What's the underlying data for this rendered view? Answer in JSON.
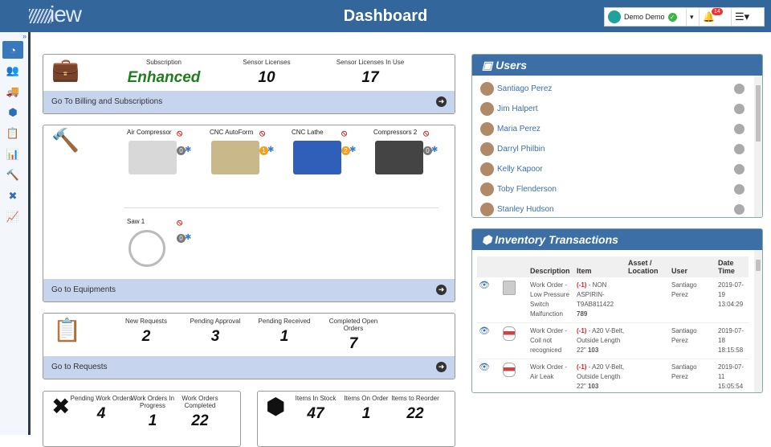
{
  "header": {
    "logo": "iew",
    "title": "Dashboard",
    "user": "Demo Demo",
    "notifications": "14"
  },
  "sidebar": {
    "expand": "»",
    "items": [
      {
        "icon": "dashboard-icon",
        "glyph": "◔"
      },
      {
        "icon": "users-icon",
        "glyph": "👥"
      },
      {
        "icon": "truck-icon",
        "glyph": "🚚"
      },
      {
        "icon": "cubes-icon",
        "glyph": "⬢"
      },
      {
        "icon": "clipboard-icon",
        "glyph": "📋"
      },
      {
        "icon": "report-icon",
        "glyph": "📊"
      },
      {
        "icon": "gavel-icon",
        "glyph": "🔨"
      },
      {
        "icon": "tools-icon",
        "glyph": "✖"
      },
      {
        "icon": "chart-icon",
        "glyph": "📈"
      }
    ]
  },
  "subscription": {
    "labels": [
      "Subscription",
      "Sensor Licenses",
      "Sensor Licenses In Use"
    ],
    "values": [
      "Enhanced",
      "10",
      "17"
    ],
    "link": "Go To Billing and Subscriptions",
    "accent": "#1e7e1e"
  },
  "equipment": {
    "items": [
      {
        "name": "Air Compressor",
        "count": "0",
        "color": "#777"
      },
      {
        "name": "CNC AutoForm",
        "count": "1",
        "color": "#f0a020"
      },
      {
        "name": "CNC Lathe",
        "count": "2",
        "color": "#f0a020"
      },
      {
        "name": "Compressors 2",
        "count": "0",
        "color": "#777"
      },
      {
        "name": "Saw 1",
        "count": "0",
        "color": "#777"
      }
    ],
    "link": "Go to Equipments"
  },
  "requests": {
    "labels": [
      "New Requests",
      "Pending Approval",
      "Pending Received",
      "Completed Open Orders"
    ],
    "values": [
      "2",
      "3",
      "1",
      "7"
    ],
    "link": "Go to Requests"
  },
  "workorders": {
    "labels": [
      "Pending Work Orders",
      "Work Orders In Progress",
      "Work Orders Completed"
    ],
    "values": [
      "4",
      "1",
      "22"
    ]
  },
  "inventory_stats": {
    "labels": [
      "Items In Stock",
      "Items On Order",
      "Items to Reorder"
    ],
    "values": [
      "47",
      "1",
      "22"
    ]
  },
  "users": {
    "title": "Users",
    "list": [
      "Santiago Perez",
      "Jim Halpert",
      "Maria Perez",
      "Darryl Philbin",
      "Kelly Kapoor",
      "Toby Flenderson",
      "Stanley Hudson"
    ]
  },
  "transactions": {
    "title": "Inventory Transactions",
    "columns": [
      "",
      "",
      "Description",
      "Item",
      "Asset / Location",
      "User",
      "Date Time"
    ],
    "rows": [
      {
        "desc": "Work Order - Low Pressure Switch Malfunction",
        "qty": "(-1)",
        "item": " - NON ASPIRIN-T9AB811422",
        "code": "789",
        "user": "Santiago Perez",
        "date": "2019-07-19 13:04:29"
      },
      {
        "desc": "Work Order - Coil not recogniced",
        "qty": "(-1)",
        "item": " - A20 V-Belt, Outside Length 22\"",
        "code": "103",
        "user": "Santiago Perez",
        "date": "2019-07-18 18:15:58"
      },
      {
        "desc": "Work Order - Air Leak",
        "qty": "(-1)",
        "item": " - A20 V-Belt, Outside Length 22\"",
        "code": "103",
        "user": "Santiago Perez",
        "date": "2019-07-11 15:05:54"
      }
    ]
  }
}
